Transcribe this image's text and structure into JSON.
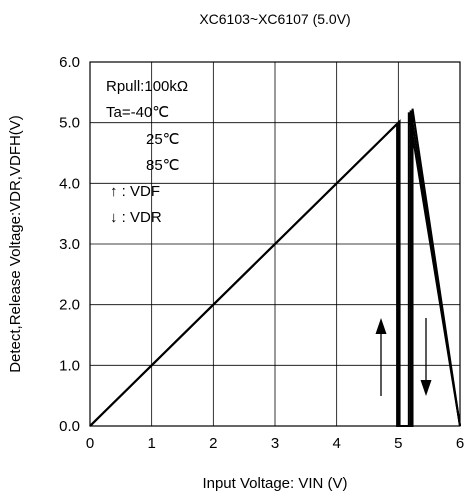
{
  "chart_data": {
    "type": "line",
    "title": "XC6103~XC6107 (5.0V)",
    "xlabel": "Input Voltage:  VIN (V)",
    "ylabel": "Detect,Release Voltage:VDR,VDFH(V)",
    "xlim": [
      0,
      6
    ],
    "ylim": [
      0,
      6
    ],
    "x_ticks": [
      "0",
      "1",
      "2",
      "3",
      "4",
      "5",
      "6"
    ],
    "y_ticks": [
      "0.0",
      "1.0",
      "2.0",
      "3.0",
      "4.0",
      "5.0",
      "6.0"
    ],
    "grid": true,
    "annotations": [
      "Rpull:100kΩ",
      "Ta=-40℃",
      "25℃",
      "85℃",
      "↑ : VDF",
      "↓ : VDR"
    ],
    "series": [
      {
        "name": "Ta=-40℃",
        "x": [
          0,
          4.98,
          4.98,
          5.17,
          5.17,
          6
        ],
        "y": [
          0,
          4.98,
          0,
          0,
          5.17,
          0
        ]
      },
      {
        "name": "25℃",
        "x": [
          0,
          5.0,
          5.0,
          5.2,
          5.2,
          6
        ],
        "y": [
          0,
          5.0,
          0,
          0,
          5.2,
          0
        ]
      },
      {
        "name": "85℃",
        "x": [
          0,
          5.02,
          5.02,
          5.23,
          5.23,
          6
        ],
        "y": [
          0,
          5.02,
          0,
          0,
          5.23,
          0
        ]
      }
    ]
  }
}
